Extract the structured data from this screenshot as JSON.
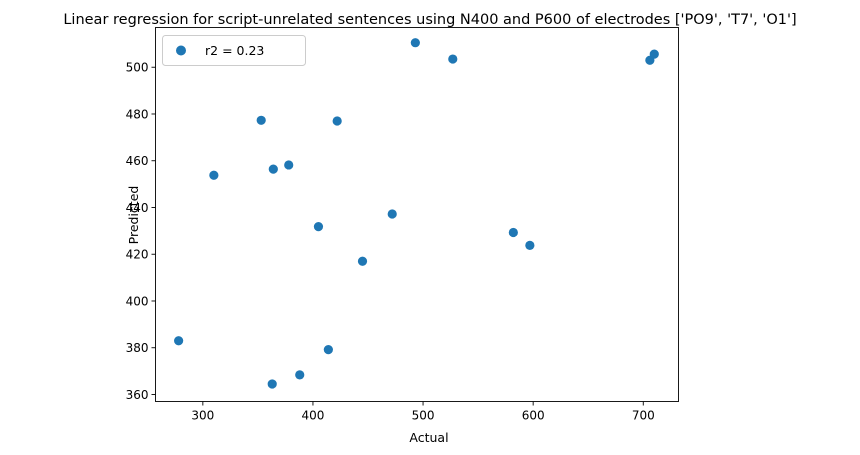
{
  "chart_data": {
    "type": "scatter",
    "title": "Linear regression for script-unrelated sentences using N400 and P600 of electrodes ['PO9', 'T7', 'O1']",
    "xlabel": "Actual",
    "ylabel": "Predicted",
    "xlim": [
      257,
      732
    ],
    "ylim": [
      357,
      517
    ],
    "xticks": [
      300,
      400,
      500,
      600,
      700
    ],
    "yticks": [
      360,
      380,
      400,
      420,
      440,
      460,
      480,
      500
    ],
    "grid": false,
    "legend": {
      "placement": "top-left",
      "entries": [
        "r2 = 0.23"
      ]
    },
    "series": [
      {
        "name": "r2 = 0.23",
        "color": "#1f77b4",
        "points": [
          {
            "x": 278,
            "y": 383.0
          },
          {
            "x": 310,
            "y": 453.8
          },
          {
            "x": 353,
            "y": 477.3
          },
          {
            "x": 363,
            "y": 364.5
          },
          {
            "x": 364,
            "y": 456.4
          },
          {
            "x": 378,
            "y": 458.2
          },
          {
            "x": 388,
            "y": 368.4
          },
          {
            "x": 405,
            "y": 431.8
          },
          {
            "x": 414,
            "y": 379.2
          },
          {
            "x": 422,
            "y": 477.0
          },
          {
            "x": 445,
            "y": 417.0
          },
          {
            "x": 472,
            "y": 437.2
          },
          {
            "x": 493,
            "y": 510.5
          },
          {
            "x": 527,
            "y": 503.5
          },
          {
            "x": 582,
            "y": 429.3
          },
          {
            "x": 597,
            "y": 423.8
          },
          {
            "x": 706,
            "y": 503.0
          },
          {
            "x": 710,
            "y": 505.6
          }
        ]
      }
    ]
  }
}
